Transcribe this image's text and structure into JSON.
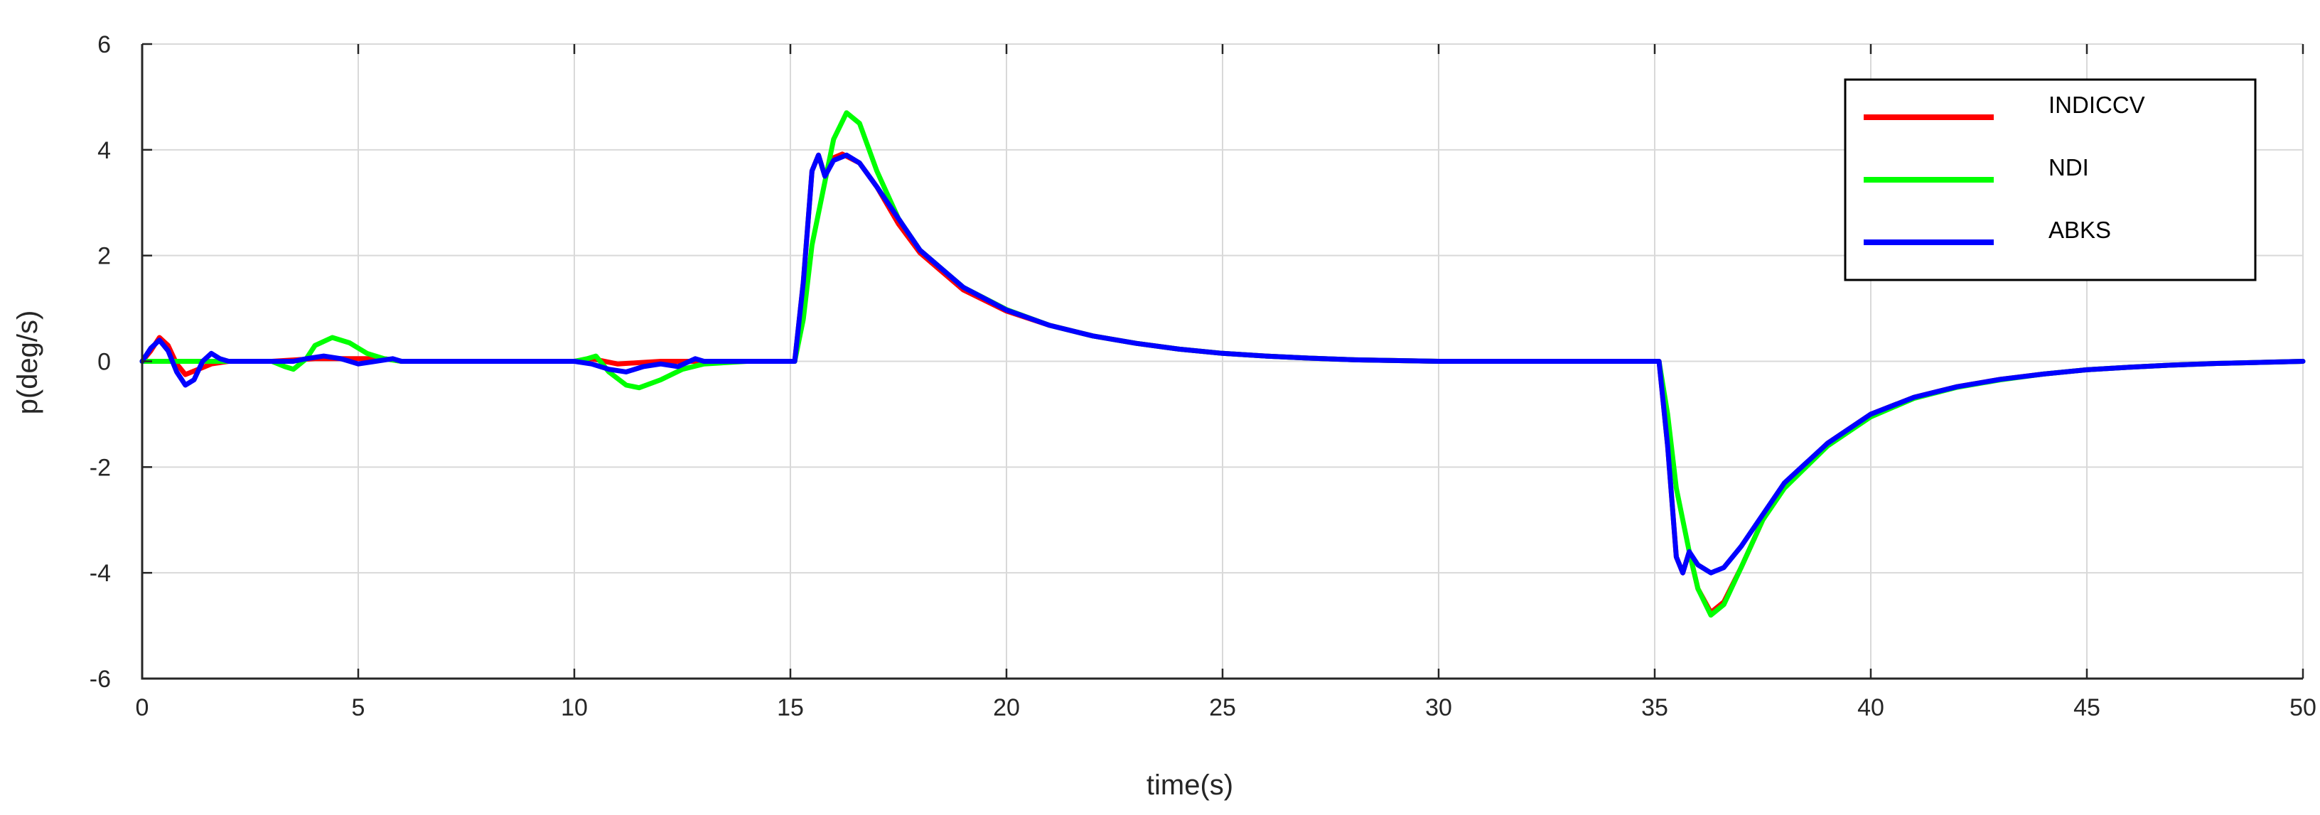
{
  "chart_data": {
    "type": "line",
    "title": "",
    "xlabel": "time(s)",
    "ylabel": "p(deg/s)",
    "xlim": [
      0,
      50
    ],
    "ylim": [
      -6,
      6
    ],
    "xticks": [
      0,
      5,
      10,
      15,
      20,
      25,
      30,
      35,
      40,
      45,
      50
    ],
    "yticks": [
      -6,
      -4,
      -2,
      0,
      2,
      4,
      6
    ],
    "grid": true,
    "legend": "top-right",
    "series": [
      {
        "name": "INDICCV",
        "color": "#ff0000",
        "points": [
          [
            0,
            0
          ],
          [
            0.2,
            0.2
          ],
          [
            0.4,
            0.45
          ],
          [
            0.6,
            0.3
          ],
          [
            0.8,
            -0.05
          ],
          [
            1.0,
            -0.25
          ],
          [
            1.3,
            -0.15
          ],
          [
            1.6,
            -0.05
          ],
          [
            2.0,
            0
          ],
          [
            3.0,
            0
          ],
          [
            4.0,
            0.05
          ],
          [
            5.0,
            0.05
          ],
          [
            5.6,
            0.05
          ],
          [
            6.0,
            0
          ],
          [
            10.0,
            0
          ],
          [
            10.4,
            0.05
          ],
          [
            11.0,
            -0.05
          ],
          [
            12.0,
            0
          ],
          [
            15.0,
            0
          ],
          [
            15.1,
            0
          ],
          [
            15.3,
            1.5
          ],
          [
            15.5,
            3.6
          ],
          [
            15.65,
            3.9
          ],
          [
            15.8,
            3.5
          ],
          [
            16.0,
            3.85
          ],
          [
            16.2,
            3.92
          ],
          [
            16.6,
            3.75
          ],
          [
            17.0,
            3.3
          ],
          [
            17.5,
            2.6
          ],
          [
            18.0,
            2.05
          ],
          [
            19.0,
            1.35
          ],
          [
            20.0,
            0.95
          ],
          [
            21.0,
            0.68
          ],
          [
            22.0,
            0.48
          ],
          [
            23.0,
            0.34
          ],
          [
            24.0,
            0.23
          ],
          [
            25.0,
            0.15
          ],
          [
            26.0,
            0.1
          ],
          [
            27.0,
            0.06
          ],
          [
            28.0,
            0.03
          ],
          [
            30.0,
            0
          ],
          [
            35.0,
            0
          ],
          [
            35.1,
            0
          ],
          [
            35.3,
            -1.6
          ],
          [
            35.5,
            -3.7
          ],
          [
            35.65,
            -4.0
          ],
          [
            35.8,
            -3.6
          ],
          [
            36.0,
            -4.3
          ],
          [
            36.3,
            -4.75
          ],
          [
            36.6,
            -4.55
          ],
          [
            37.0,
            -3.9
          ],
          [
            37.5,
            -3.0
          ],
          [
            38.0,
            -2.35
          ],
          [
            39.0,
            -1.55
          ],
          [
            40.0,
            -1.0
          ],
          [
            41.0,
            -0.68
          ],
          [
            42.0,
            -0.48
          ],
          [
            43.0,
            -0.34
          ],
          [
            44.0,
            -0.24
          ],
          [
            45.0,
            -0.16
          ],
          [
            46.0,
            -0.11
          ],
          [
            47.0,
            -0.07
          ],
          [
            48.0,
            -0.04
          ],
          [
            50.0,
            0
          ]
        ]
      },
      {
        "name": "NDI",
        "color": "#00ff00",
        "points": [
          [
            0,
            0
          ],
          [
            2.0,
            0
          ],
          [
            3.0,
            0
          ],
          [
            3.3,
            -0.1
          ],
          [
            3.5,
            -0.15
          ],
          [
            3.8,
            0.05
          ],
          [
            4.0,
            0.3
          ],
          [
            4.4,
            0.45
          ],
          [
            4.8,
            0.35
          ],
          [
            5.2,
            0.15
          ],
          [
            5.6,
            0.05
          ],
          [
            6.0,
            0
          ],
          [
            10.0,
            0
          ],
          [
            10.3,
            0.05
          ],
          [
            10.5,
            0.1
          ],
          [
            10.8,
            -0.2
          ],
          [
            11.2,
            -0.45
          ],
          [
            11.5,
            -0.5
          ],
          [
            12.0,
            -0.35
          ],
          [
            12.5,
            -0.15
          ],
          [
            13.0,
            -0.05
          ],
          [
            14.0,
            0
          ],
          [
            15.0,
            0
          ],
          [
            15.1,
            0
          ],
          [
            15.3,
            0.8
          ],
          [
            15.5,
            2.2
          ],
          [
            15.8,
            3.4
          ],
          [
            16.0,
            4.2
          ],
          [
            16.3,
            4.7
          ],
          [
            16.6,
            4.5
          ],
          [
            17.0,
            3.6
          ],
          [
            17.5,
            2.7
          ],
          [
            18.0,
            2.1
          ],
          [
            19.0,
            1.4
          ],
          [
            20.0,
            0.98
          ],
          [
            21.0,
            0.68
          ],
          [
            22.0,
            0.48
          ],
          [
            23.0,
            0.34
          ],
          [
            24.0,
            0.23
          ],
          [
            25.0,
            0.15
          ],
          [
            26.0,
            0.1
          ],
          [
            27.0,
            0.06
          ],
          [
            28.0,
            0.03
          ],
          [
            30.0,
            0
          ],
          [
            35.0,
            0
          ],
          [
            35.1,
            0
          ],
          [
            35.3,
            -1.0
          ],
          [
            35.5,
            -2.4
          ],
          [
            35.8,
            -3.6
          ],
          [
            36.0,
            -4.3
          ],
          [
            36.3,
            -4.8
          ],
          [
            36.6,
            -4.6
          ],
          [
            37.0,
            -3.9
          ],
          [
            37.5,
            -3.0
          ],
          [
            38.0,
            -2.4
          ],
          [
            39.0,
            -1.6
          ],
          [
            40.0,
            -1.05
          ],
          [
            41.0,
            -0.7
          ],
          [
            42.0,
            -0.49
          ],
          [
            43.0,
            -0.35
          ],
          [
            44.0,
            -0.24
          ],
          [
            45.0,
            -0.16
          ],
          [
            46.0,
            -0.11
          ],
          [
            47.0,
            -0.07
          ],
          [
            48.0,
            -0.04
          ],
          [
            50.0,
            0
          ]
        ]
      },
      {
        "name": "ABKS",
        "color": "#0000ff",
        "points": [
          [
            0,
            0
          ],
          [
            0.2,
            0.25
          ],
          [
            0.4,
            0.4
          ],
          [
            0.6,
            0.2
          ],
          [
            0.8,
            -0.2
          ],
          [
            1.0,
            -0.45
          ],
          [
            1.2,
            -0.35
          ],
          [
            1.4,
            0
          ],
          [
            1.6,
            0.15
          ],
          [
            1.8,
            0.05
          ],
          [
            2.0,
            0
          ],
          [
            3.0,
            0
          ],
          [
            3.5,
            0
          ],
          [
            3.8,
            0.05
          ],
          [
            4.2,
            0.1
          ],
          [
            4.6,
            0.05
          ],
          [
            5.0,
            -0.05
          ],
          [
            5.4,
            0
          ],
          [
            5.8,
            0.05
          ],
          [
            6.0,
            0
          ],
          [
            10.0,
            0
          ],
          [
            10.4,
            -0.05
          ],
          [
            10.8,
            -0.15
          ],
          [
            11.2,
            -0.2
          ],
          [
            11.6,
            -0.1
          ],
          [
            12.0,
            -0.05
          ],
          [
            12.4,
            -0.1
          ],
          [
            12.8,
            0.05
          ],
          [
            13.0,
            0
          ],
          [
            15.0,
            0
          ],
          [
            15.1,
            0
          ],
          [
            15.3,
            1.5
          ],
          [
            15.5,
            3.6
          ],
          [
            15.65,
            3.9
          ],
          [
            15.8,
            3.5
          ],
          [
            16.0,
            3.8
          ],
          [
            16.3,
            3.9
          ],
          [
            16.6,
            3.75
          ],
          [
            17.0,
            3.3
          ],
          [
            17.5,
            2.7
          ],
          [
            18.0,
            2.1
          ],
          [
            19.0,
            1.4
          ],
          [
            20.0,
            0.97
          ],
          [
            21.0,
            0.68
          ],
          [
            22.0,
            0.48
          ],
          [
            23.0,
            0.34
          ],
          [
            24.0,
            0.23
          ],
          [
            25.0,
            0.15
          ],
          [
            26.0,
            0.1
          ],
          [
            27.0,
            0.06
          ],
          [
            28.0,
            0.03
          ],
          [
            30.0,
            0
          ],
          [
            35.0,
            0
          ],
          [
            35.1,
            0
          ],
          [
            35.3,
            -1.6
          ],
          [
            35.5,
            -3.7
          ],
          [
            35.65,
            -4.0
          ],
          [
            35.8,
            -3.6
          ],
          [
            36.0,
            -3.85
          ],
          [
            36.3,
            -4.0
          ],
          [
            36.6,
            -3.9
          ],
          [
            37.0,
            -3.5
          ],
          [
            37.5,
            -2.9
          ],
          [
            38.0,
            -2.3
          ],
          [
            39.0,
            -1.55
          ],
          [
            40.0,
            -1.0
          ],
          [
            41.0,
            -0.68
          ],
          [
            42.0,
            -0.48
          ],
          [
            43.0,
            -0.34
          ],
          [
            44.0,
            -0.24
          ],
          [
            45.0,
            -0.16
          ],
          [
            46.0,
            -0.11
          ],
          [
            47.0,
            -0.07
          ],
          [
            48.0,
            -0.04
          ],
          [
            50.0,
            0
          ]
        ]
      }
    ]
  }
}
